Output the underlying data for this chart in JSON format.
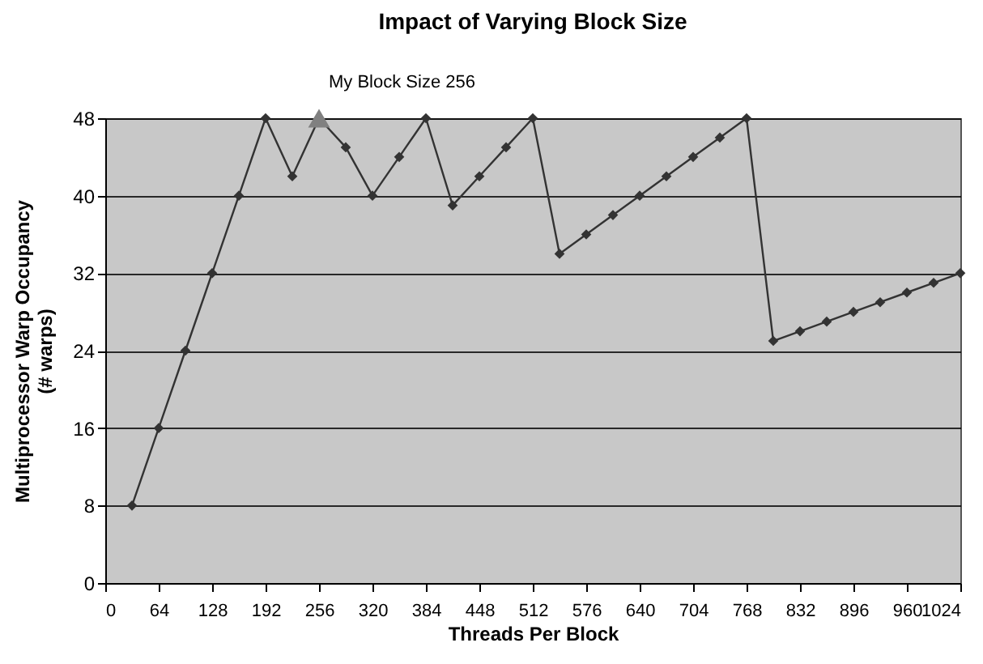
{
  "chart_data": {
    "type": "line",
    "title": "Impact of Varying Block Size",
    "xlabel": "Threads Per Block",
    "ylabel": "Multiprocessor Warp Occupancy (# warps)",
    "x": [
      32,
      64,
      96,
      128,
      160,
      192,
      224,
      256,
      288,
      320,
      352,
      384,
      416,
      448,
      480,
      512,
      544,
      576,
      608,
      640,
      672,
      704,
      736,
      768,
      800,
      832,
      864,
      896,
      928,
      960,
      992,
      1024
    ],
    "series": [
      {
        "color": "#333333",
        "marker": "diamond",
        "values": [
          8,
          16,
          24,
          32,
          40,
          48,
          42,
          48,
          45,
          40,
          44,
          48,
          39,
          42,
          45,
          48,
          34,
          36,
          38,
          40,
          42,
          44,
          46,
          48,
          25,
          26,
          27,
          28,
          29,
          30,
          31,
          32
        ]
      },
      {
        "type": "scatter",
        "x": [
          256
        ],
        "color": "#808080",
        "marker": "triangle",
        "values": [
          48
        ]
      }
    ],
    "annotations": [
      {
        "text": "My Block Size 256",
        "x": 256,
        "y": 48
      }
    ],
    "xlim": [
      0,
      1024
    ],
    "xticks": [
      0,
      64,
      128,
      192,
      256,
      320,
      384,
      448,
      512,
      576,
      640,
      704,
      768,
      832,
      896,
      960,
      {
        "value": 1024,
        "label": "1024"
      }
    ],
    "ylim": [
      0,
      48
    ],
    "yticks": [
      0,
      8,
      16,
      24,
      32,
      40,
      48
    ],
    "grid": "y"
  }
}
